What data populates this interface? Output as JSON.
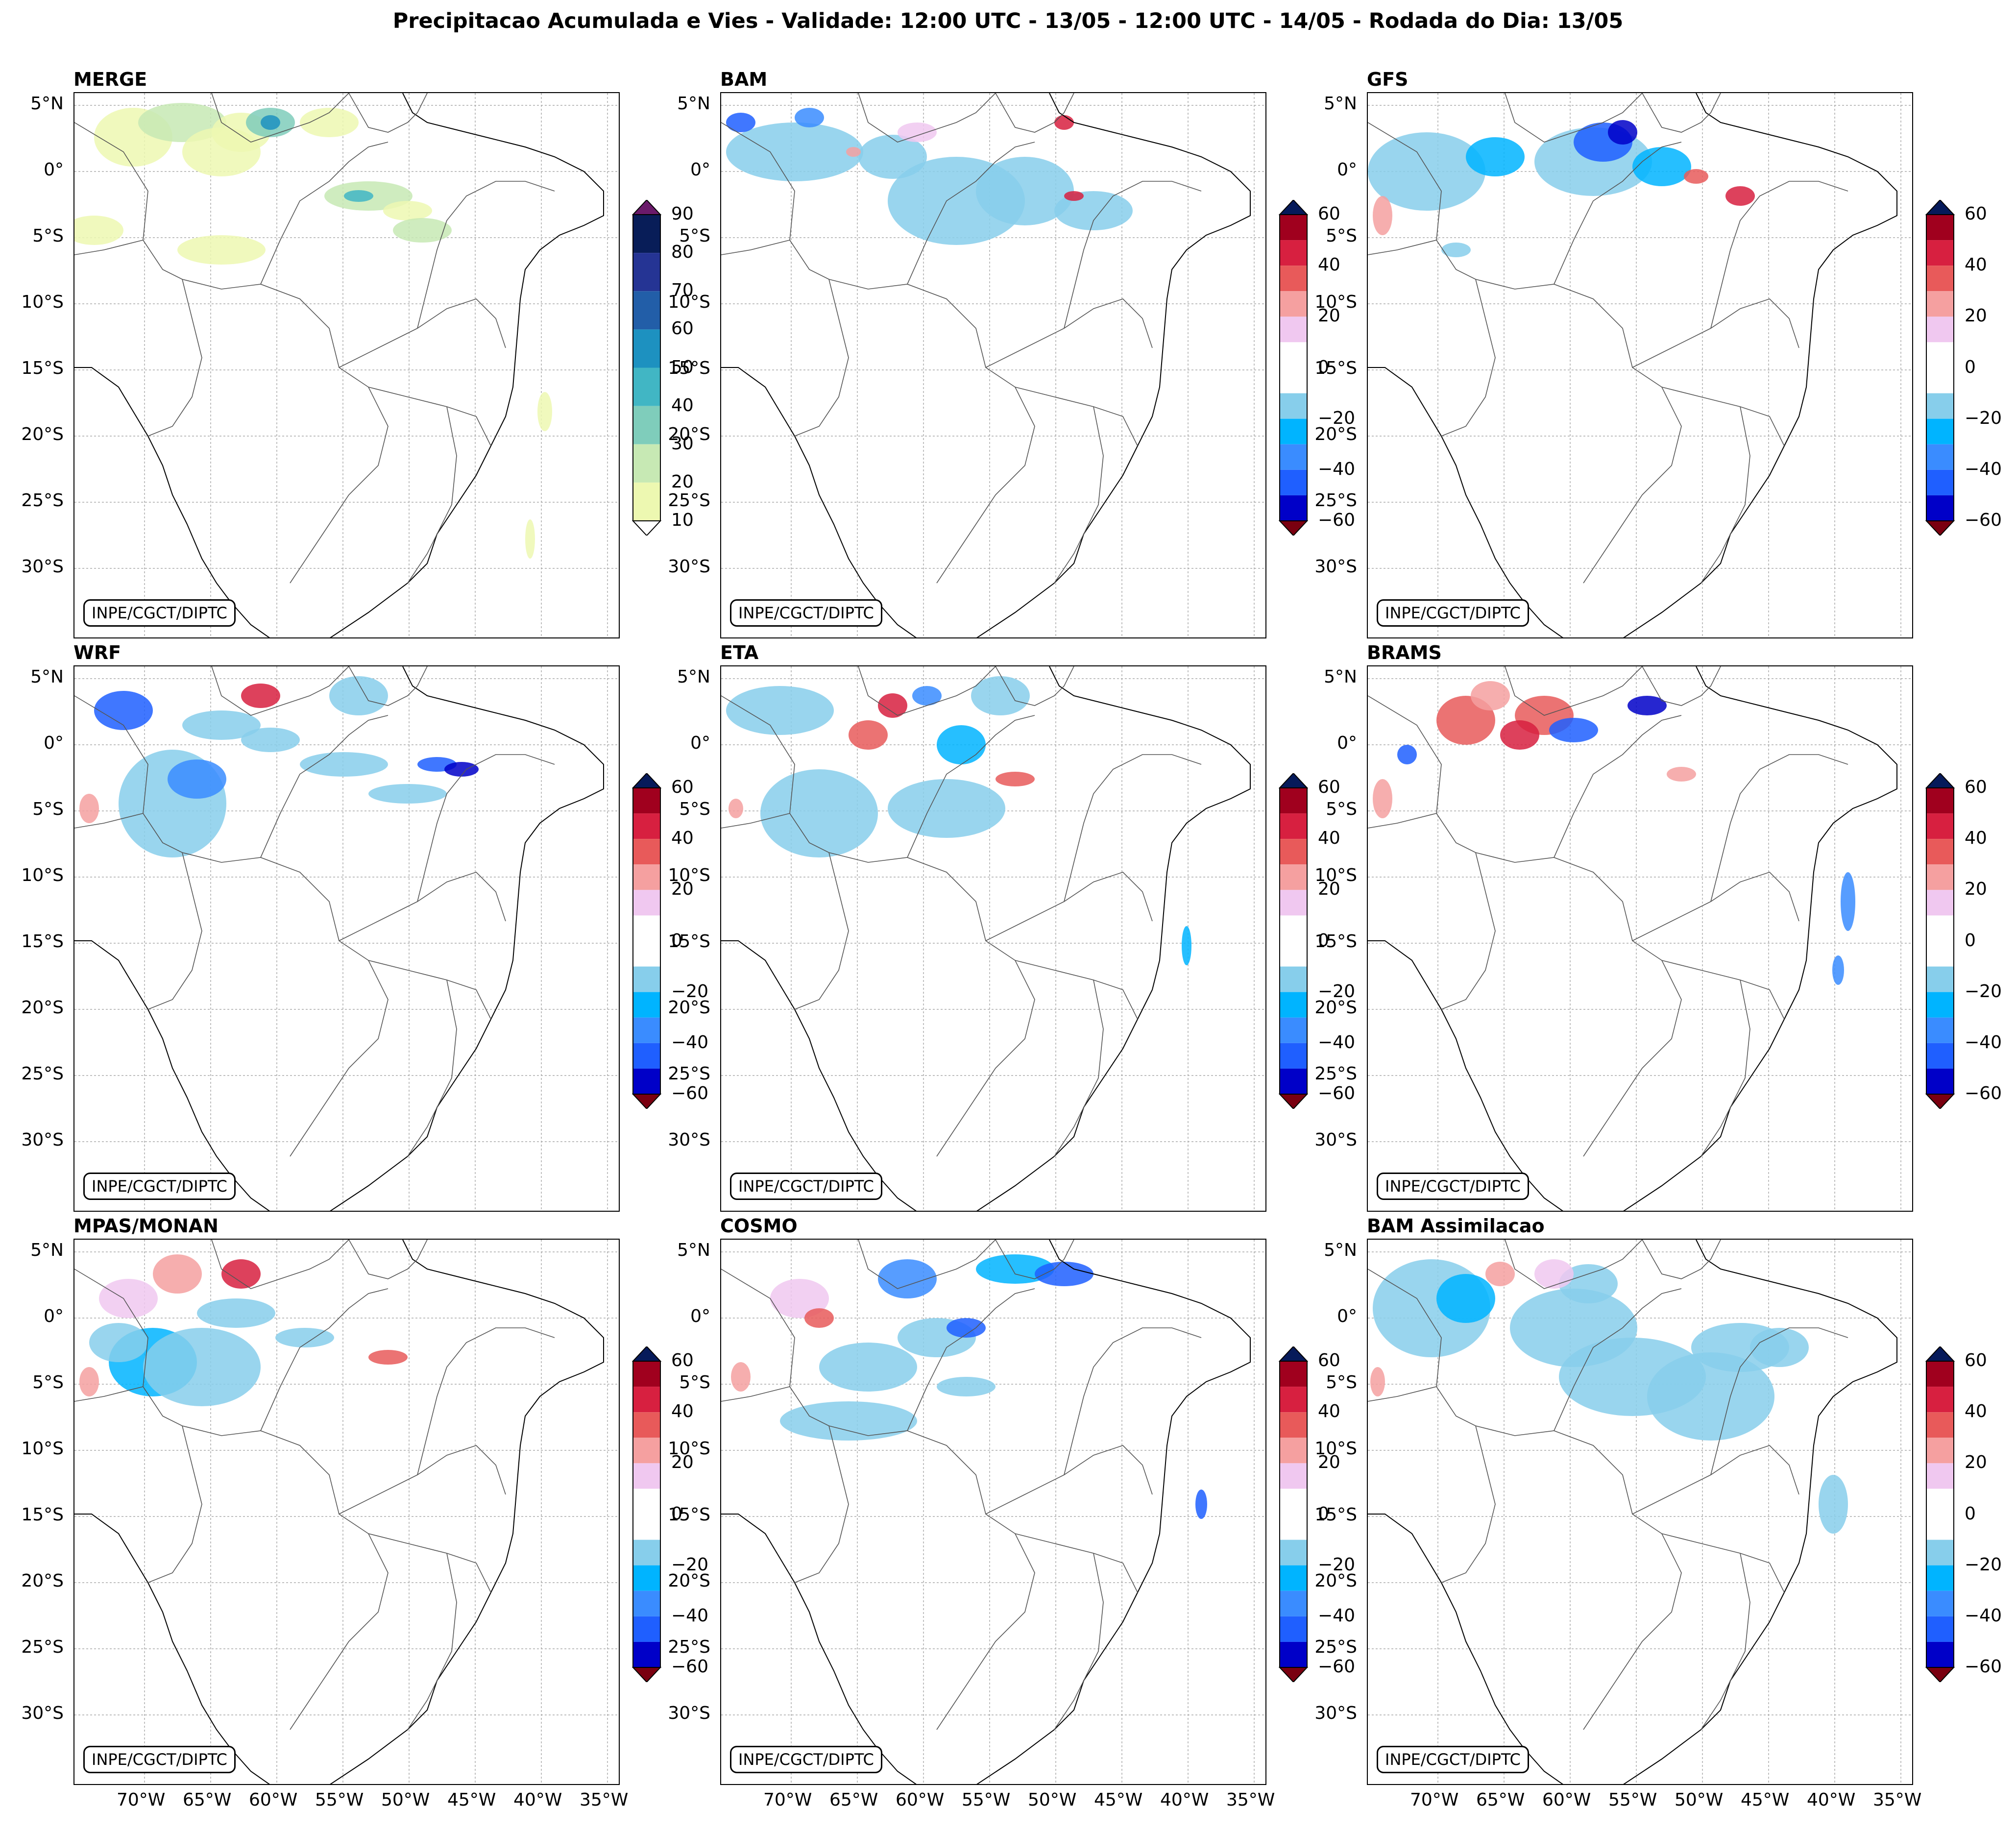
{
  "figure": {
    "title": "Precipitacao Acumulada e Vies - Validade: 12:00 UTC - 13/05 - 12:00 UTC - 14/05 - Rodada do Dia: 13/05",
    "watermark": "INPE/CGCT/DIPTC"
  },
  "panels": [
    {
      "title": "MERGE"
    },
    {
      "title": "BAM"
    },
    {
      "title": "GFS"
    },
    {
      "title": "WRF"
    },
    {
      "title": "ETA"
    },
    {
      "title": "BRAMS"
    },
    {
      "title": "MPAS/MONAN"
    },
    {
      "title": "COSMO"
    },
    {
      "title": "BAM Assimilacao"
    }
  ],
  "axes": {
    "lat_labels": [
      "5°N",
      "0°",
      "5°S",
      "10°S",
      "15°S",
      "20°S",
      "25°S",
      "30°S"
    ],
    "lon_labels": [
      "70°W",
      "65°W",
      "60°W",
      "55°W",
      "50°W",
      "45°W",
      "40°W",
      "35°W"
    ]
  },
  "colorbars": {
    "precip": {
      "ticks": [
        "10",
        "20",
        "30",
        "40",
        "50",
        "60",
        "70",
        "80",
        "90"
      ],
      "colors": [
        "#edf8b1",
        "#c7e9b4",
        "#7fcdbb",
        "#41b6c4",
        "#1d91c0",
        "#225ea8",
        "#253494",
        "#081d58"
      ],
      "over_color": "#6a1a6a"
    },
    "bias": {
      "ticks": [
        "60",
        "40",
        "20",
        "0",
        "−20",
        "−40",
        "−60"
      ],
      "colors": [
        "#0000c8",
        "#1f5fff",
        "#3a8cff",
        "#00b4ff",
        "#87ceeb",
        "#ffffff",
        "#ffffff",
        "#f0c8f0",
        "#f5a0a0",
        "#e85a5a",
        "#d72040",
        "#a0001e"
      ],
      "over_color": "#061a5a",
      "under_color": "#7a0010"
    }
  }
}
